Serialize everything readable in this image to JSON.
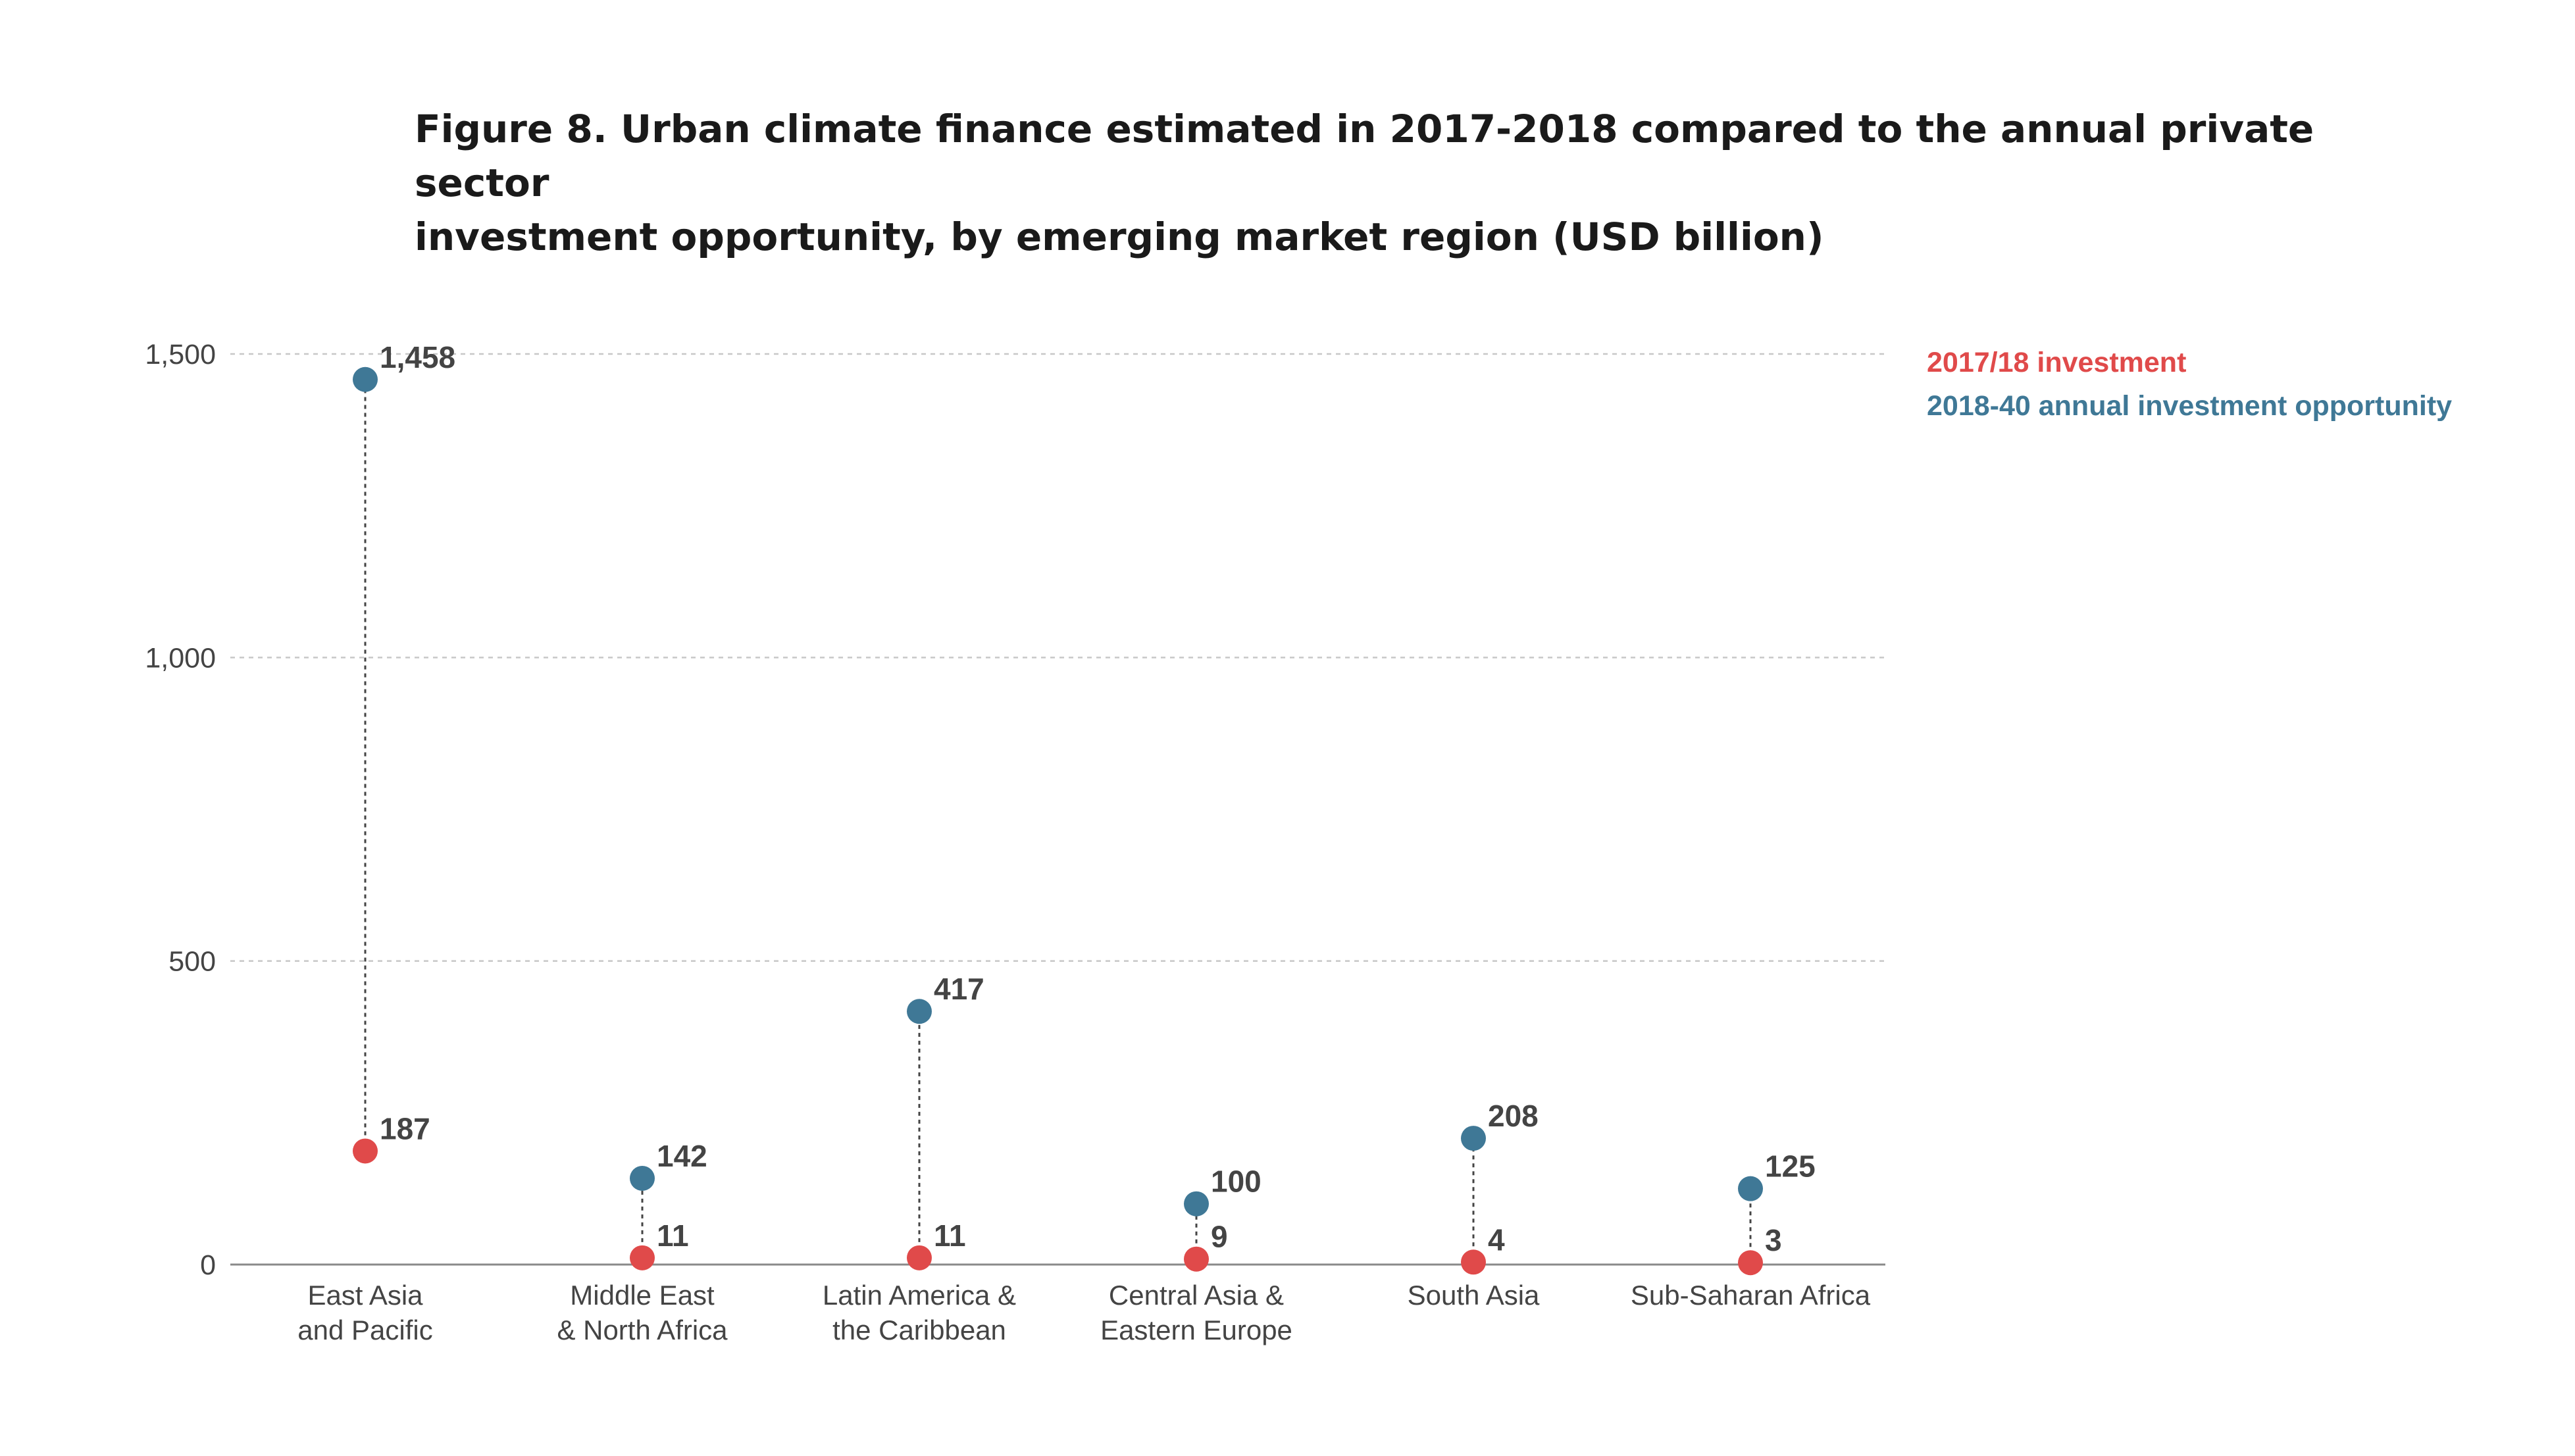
{
  "chart_data": {
    "type": "dot-plot",
    "title": "Figure 8. Urban climate finance estimated in 2017-2018 compared to the annual private sector investment opportunity, by emerging market region (USD billion)",
    "title_lines": [
      "Figure 8. Urban climate finance estimated in 2017-2018 compared to the annual private sector",
      "investment opportunity, by emerging market region (USD billion)"
    ],
    "ylim": [
      0,
      1500
    ],
    "yticks": [
      0,
      500,
      1000,
      1500
    ],
    "ytick_labels": [
      "0",
      "500",
      "1,000",
      "1,500"
    ],
    "grid": true,
    "legend_position": "top-right",
    "categories": [
      [
        "East Asia",
        "and Pacific"
      ],
      [
        "Middle East",
        "& North Africa"
      ],
      [
        "Latin America &",
        "the Caribbean"
      ],
      [
        "Central Asia &",
        "Eastern Europe"
      ],
      [
        "South Asia"
      ],
      [
        "Sub-Saharan Africa"
      ]
    ],
    "series": [
      {
        "name": "2017/18 investment",
        "color": "#e04a4a",
        "values": [
          187,
          11,
          11,
          9,
          4,
          3
        ],
        "value_labels": [
          "187",
          "11",
          "11",
          "9",
          "4",
          "3"
        ]
      },
      {
        "name": "2018-40 annual investment opportunity",
        "color": "#3f7896",
        "values": [
          1458,
          142,
          417,
          100,
          208,
          125
        ],
        "value_labels": [
          "1,458",
          "142",
          "417",
          "100",
          "208",
          "125"
        ]
      }
    ]
  }
}
